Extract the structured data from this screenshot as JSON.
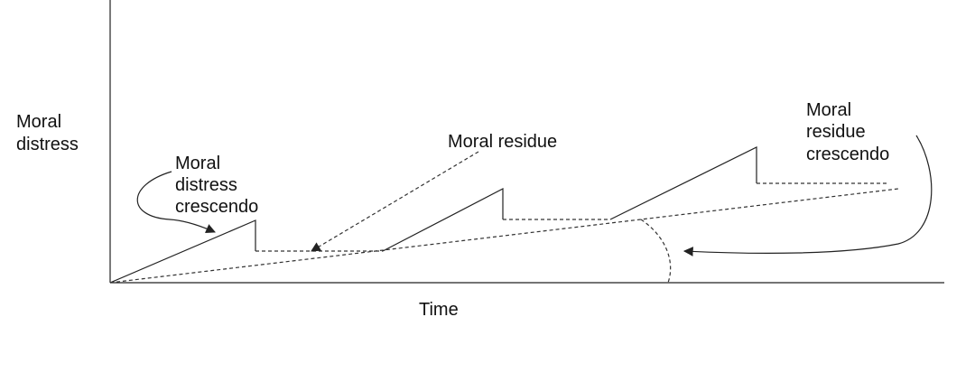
{
  "labels": {
    "y_axis": [
      "Moral",
      "distress"
    ],
    "x_axis": "Time",
    "distress_crescendo": [
      "Moral",
      "distress",
      "crescendo"
    ],
    "moral_residue": "Moral residue",
    "residue_crescendo": [
      "Moral",
      "residue",
      "crescendo"
    ]
  },
  "colors": {
    "line": "#222222",
    "text": "#111111",
    "background": "#ffffff"
  }
}
